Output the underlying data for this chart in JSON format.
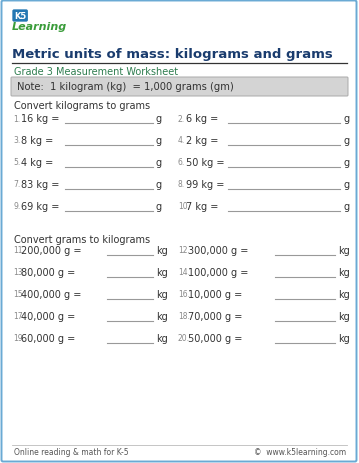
{
  "title": "Metric units of mass: kilograms and grams",
  "subtitle": "Grade 3 Measurement Worksheet",
  "note": "Note:  1 kilogram (kg)  = 1,000 grams (gm)",
  "section1_header": "Convert kilograms to grams",
  "section2_header": "Convert grams to kilograms",
  "left_col_problems_kg": [
    "1.   16 kg =",
    "3.   8 kg =",
    "5.   4 kg =",
    "7.   83 kg =",
    "9.   69 kg ="
  ],
  "right_col_problems_kg": [
    "2.   6 kg =",
    "4.   2 kg =",
    "6.   50 kg =",
    "8.   99 kg =",
    "10.   7 kg ="
  ],
  "left_col_unit_kg": [
    "g",
    "g",
    "g",
    "g",
    "g"
  ],
  "right_col_unit_kg": [
    "g",
    "g",
    "g",
    "g",
    "g"
  ],
  "left_col_problems_g": [
    "11.   200,000 g =",
    "13.   80,000 g =",
    "15.   400,000 g =",
    "17.   40,000 g =",
    "19.   60,000 g ="
  ],
  "right_col_problems_g": [
    "12.   300,000 g =",
    "14.   100,000 g =",
    "16.   10,000 g =",
    "18.   70,000 g =",
    "20.   50,000 g ="
  ],
  "left_col_unit_g": [
    "kg",
    "kg",
    "kg",
    "kg",
    "kg"
  ],
  "right_col_unit_g": [
    "kg",
    "kg",
    "kg",
    "kg",
    "kg"
  ],
  "footer_left": "Online reading & math for K-5",
  "footer_right": "©  www.k5learning.com",
  "title_color": "#1a3c6e",
  "subtitle_color": "#2e7d4f",
  "note_color": "#333333",
  "section_header_color": "#333333",
  "problem_color": "#333333",
  "border_color": "#6aaad4",
  "note_bg_color": "#d4d4d4",
  "bg_color": "#ffffff",
  "footer_color": "#555555",
  "line_color": "#999999",
  "num_color": "#888888"
}
